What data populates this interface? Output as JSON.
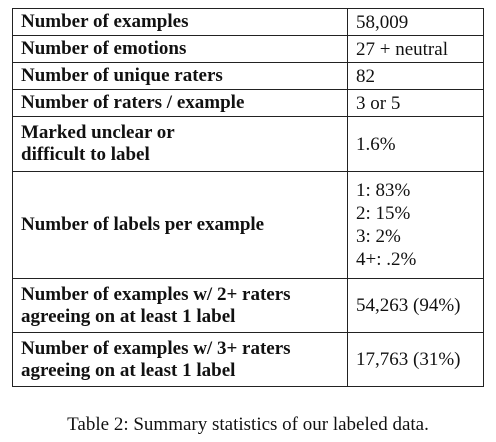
{
  "table": {
    "rows": [
      {
        "label": [
          "Number of examples"
        ],
        "value": [
          "58,009"
        ]
      },
      {
        "label": [
          "Number of emotions"
        ],
        "value": [
          "27 + neutral"
        ]
      },
      {
        "label": [
          "Number of unique raters"
        ],
        "value": [
          "82"
        ]
      },
      {
        "label": [
          "Number of raters / example"
        ],
        "value": [
          "3 or 5"
        ]
      },
      {
        "label": [
          "Marked unclear or",
          "difficult to label"
        ],
        "value": [
          "1.6%"
        ]
      },
      {
        "label": [
          "Number of labels per example"
        ],
        "value": [
          "1: 83%",
          "2: 15%",
          "3: 2%",
          "4+: .2%"
        ]
      },
      {
        "label": [
          "Number of examples w/ 2+ raters",
          "agreeing on at least 1 label"
        ],
        "value": [
          "54,263 (94%)"
        ]
      },
      {
        "label": [
          "Number of examples w/ 3+ raters",
          "agreeing on at least 1 label"
        ],
        "value": [
          "17,763 (31%)"
        ]
      }
    ]
  },
  "caption": "Table 2: Summary statistics of our labeled data."
}
